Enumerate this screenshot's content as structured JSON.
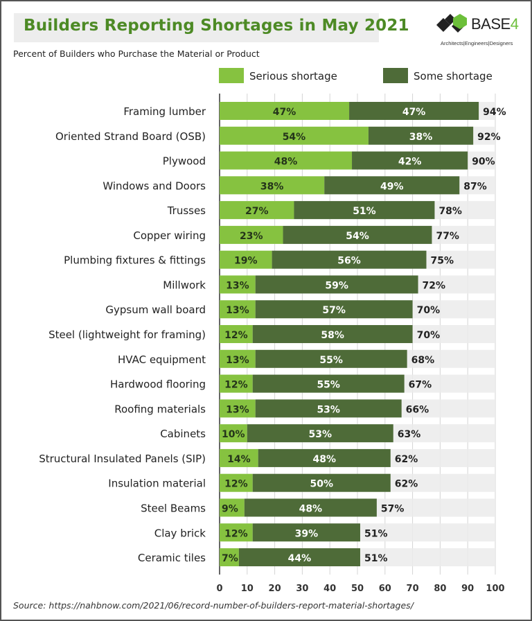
{
  "header": {
    "title": "Builders Reporting Shortages in May 2021",
    "subtitle": "Percent of Builders who Purchase the Material or Product"
  },
  "logo": {
    "name": "BASE",
    "number": "4",
    "tagline": "Architects|Engineers|Designers"
  },
  "source": "Source: https://nahbnow.com/2021/06/record-number-of-builders-report-material-shortages/",
  "chart_data": {
    "type": "bar",
    "orientation": "horizontal",
    "stacked": true,
    "title": "Builders Reporting Shortages in May 2021",
    "subtitle": "Percent of Builders who Purchase the Material or Product",
    "legend_position": "top",
    "grid": true,
    "xlim": [
      0,
      100
    ],
    "xticks": [
      "0",
      "10",
      "20",
      "30",
      "40",
      "50",
      "60",
      "70",
      "80",
      "90",
      "100"
    ],
    "categories": [
      "Framing lumber",
      "Oriented Strand Board (OSB)",
      "Plywood",
      "Windows and Doors",
      "Trusses",
      "Copper wiring",
      "Plumbing fixtures & fittings",
      "Millwork",
      "Gypsum wall board",
      "Steel (lightweight for framing)",
      "HVAC equipment",
      "Hardwood flooring",
      "Roofing materials",
      "Cabinets",
      "Structural Insulated Panels (SIP)",
      "Insulation material",
      "Steel Beams",
      "Clay brick",
      "Ceramic tiles"
    ],
    "series": [
      {
        "name": "Serious shortage",
        "color": "#86c240",
        "values": [
          47,
          54,
          48,
          38,
          27,
          23,
          19,
          13,
          13,
          12,
          13,
          12,
          13,
          10,
          14,
          12,
          9,
          12,
          7
        ]
      },
      {
        "name": "Some shortage",
        "color": "#4e6b38",
        "values": [
          47,
          38,
          42,
          49,
          51,
          54,
          56,
          59,
          57,
          58,
          55,
          55,
          53,
          53,
          48,
          50,
          48,
          39,
          44
        ]
      }
    ],
    "totals": [
      94,
      92,
      90,
      87,
      78,
      77,
      75,
      72,
      70,
      70,
      68,
      67,
      66,
      63,
      62,
      62,
      57,
      51,
      51
    ],
    "background_color": "#ebebeb"
  }
}
